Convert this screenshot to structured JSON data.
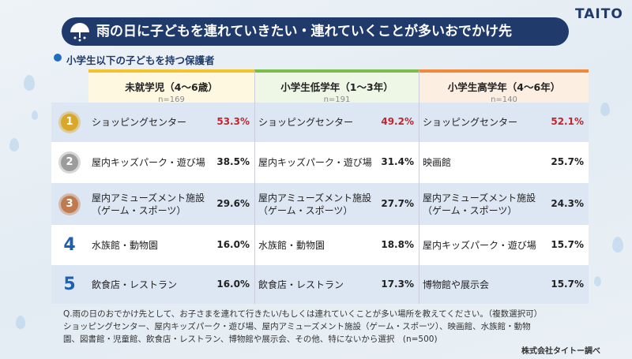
{
  "header": {
    "title": "雨の日に子どもを連れていきたい・連れていくことが多いおでかけ先",
    "logo": "TAITO",
    "subtitle": "小学生以下の子どもを持つ保護者"
  },
  "table": {
    "columns": [
      {
        "label": "未就学児（4〜6歳）",
        "n": "n=169"
      },
      {
        "label": "小学生低学年（1〜3年）",
        "n": "n=191"
      },
      {
        "label": "小学生高学年（4〜6年）",
        "n": "n=140"
      }
    ],
    "rows": [
      {
        "rank": "1",
        "cells": [
          {
            "place": "ショッピングセンター",
            "pct": "53.3%"
          },
          {
            "place": "ショッピングセンター",
            "pct": "49.2%"
          },
          {
            "place": "ショッピングセンター",
            "pct": "52.1%"
          }
        ]
      },
      {
        "rank": "2",
        "cells": [
          {
            "place": "屋内キッズパーク・遊び場",
            "pct": "38.5%"
          },
          {
            "place": "屋内キッズパーク・遊び場",
            "pct": "31.4%"
          },
          {
            "place": "映画館",
            "pct": "25.7%"
          }
        ]
      },
      {
        "rank": "3",
        "cells": [
          {
            "place": "屋内アミューズメント施設\n（ゲーム・スポーツ）",
            "pct": "29.6%"
          },
          {
            "place": "屋内アミューズメント施設\n（ゲーム・スポーツ）",
            "pct": "27.7%"
          },
          {
            "place": "屋内アミューズメント施設\n（ゲーム・スポーツ）",
            "pct": "24.3%"
          }
        ]
      },
      {
        "rank": "4",
        "cells": [
          {
            "place": "水族館・動物園",
            "pct": "16.0%"
          },
          {
            "place": "水族館・動物園",
            "pct": "18.8%"
          },
          {
            "place": "屋内キッズパーク・遊び場",
            "pct": "15.7%"
          }
        ]
      },
      {
        "rank": "5",
        "cells": [
          {
            "place": "飲食店・レストラン",
            "pct": "16.0%"
          },
          {
            "place": "飲食店・レストラン",
            "pct": "17.3%"
          },
          {
            "place": "博物館や展示会",
            "pct": "15.7%"
          }
        ]
      }
    ]
  },
  "footer": {
    "question": "Q.雨の日のおでかけ先として、お子さまを連れて行きたい/もしくは連れていくことが多い場所を教えてください。（複数選択可）\nショッピングセンター、屋内キッズパーク・遊び場、屋内アミューズメント施設（ゲーム・スポーツ）、映画館、水族館・動物\n園、図書館・児童館、飲食店・レストラン、博物館や展示会、その他、特にないから選択　(n=500)",
    "credit": "株式会社タイトー調べ"
  }
}
